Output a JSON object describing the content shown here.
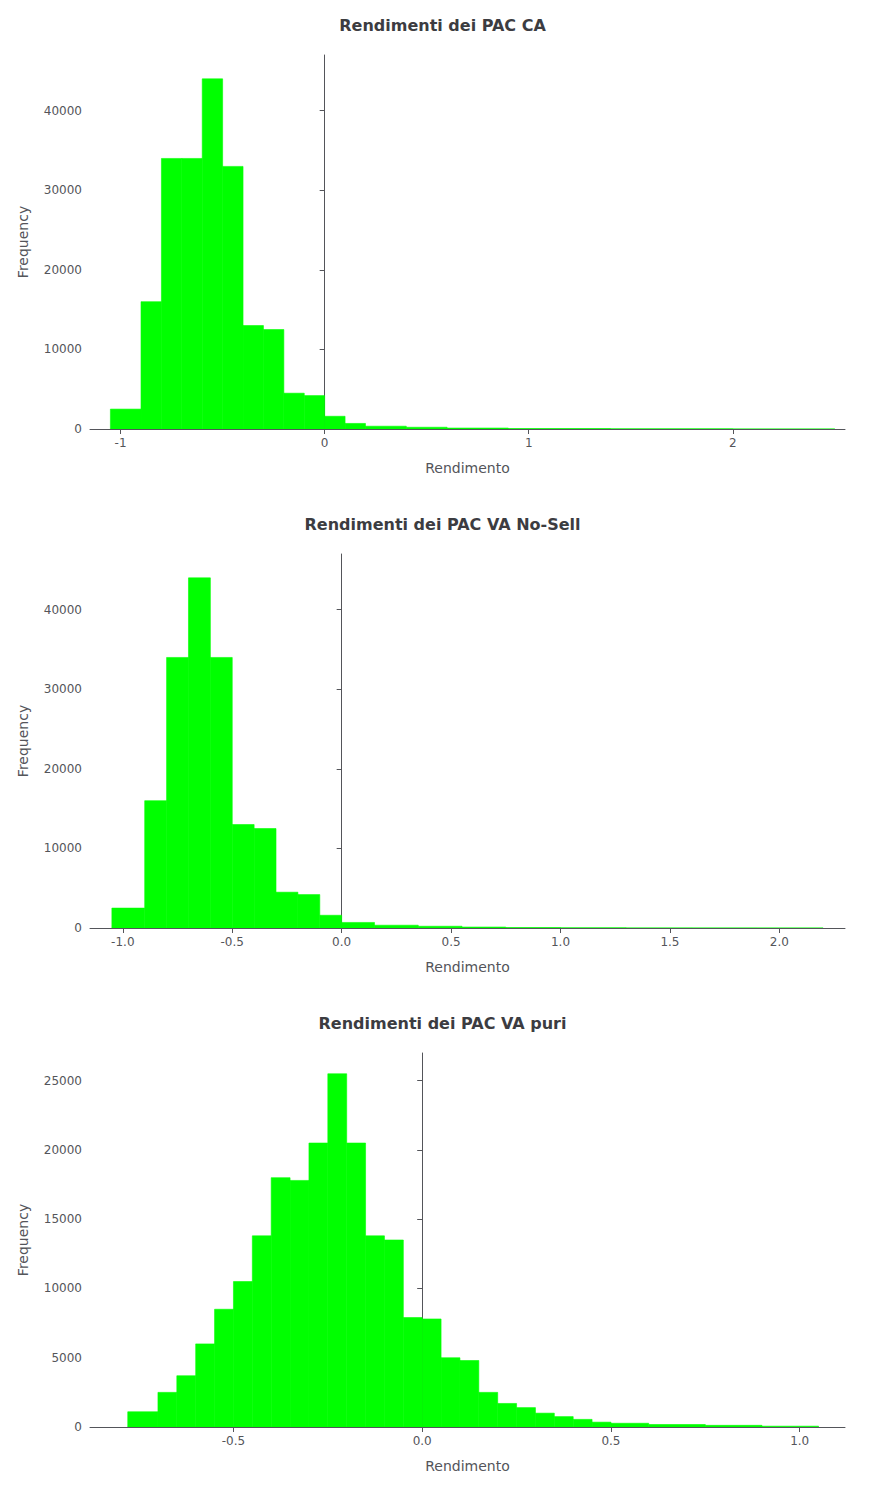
{
  "chart_data": [
    {
      "type": "histogram",
      "title": "Rendimenti dei PAC CA",
      "xlabel": "Rendimento",
      "ylabel": "Frequency",
      "color": "#00FF00",
      "bins": [
        -1.05,
        -0.9,
        -0.8,
        -0.7,
        -0.6,
        -0.5,
        -0.4,
        -0.3,
        -0.2,
        -0.1,
        0.0,
        0.1,
        0.2,
        0.4,
        0.6,
        0.9,
        1.4,
        2.0,
        2.5
      ],
      "values": [
        2500,
        16000,
        34000,
        34000,
        44000,
        33000,
        13000,
        12500,
        4500,
        4200,
        1600,
        700,
        350,
        220,
        120,
        60,
        25,
        8
      ],
      "xlim": [
        -1.15,
        2.55
      ],
      "ylim": [
        0,
        47000
      ],
      "xticks": [
        -1,
        0,
        1,
        2
      ],
      "yticks": [
        0,
        10000,
        20000,
        30000,
        40000
      ],
      "grid": false
    },
    {
      "type": "histogram",
      "title": "Rendimenti dei PAC VA No-Sell",
      "xlabel": "Rendimento",
      "ylabel": "Frequency",
      "color": "#00FF00",
      "bins": [
        -1.05,
        -0.9,
        -0.8,
        -0.7,
        -0.6,
        -0.5,
        -0.4,
        -0.3,
        -0.2,
        -0.1,
        0.0,
        0.15,
        0.35,
        0.55,
        0.75,
        1.0,
        1.3,
        1.6,
        1.9,
        2.2
      ],
      "values": [
        2500,
        16000,
        34000,
        44000,
        34000,
        13000,
        12500,
        4500,
        4200,
        1600,
        700,
        350,
        220,
        120,
        60,
        25,
        12,
        6,
        3
      ],
      "xlim": [
        -1.15,
        2.3
      ],
      "ylim": [
        0,
        47000
      ],
      "xticks": [
        {
          "value": -1.0,
          "label": "-1.0"
        },
        -0.5,
        {
          "value": 0.0,
          "label": "0.0"
        },
        0.5,
        {
          "value": 1.0,
          "label": "1.0"
        },
        1.5,
        {
          "value": 2.0,
          "label": "2.0"
        }
      ],
      "yticks": [
        0,
        10000,
        20000,
        30000,
        40000
      ],
      "grid": false
    },
    {
      "type": "histogram",
      "title": "Rendimenti dei PAC VA puri",
      "xlabel": "Rendimento",
      "ylabel": "Frequency",
      "color": "#00FF00",
      "bins": [
        -0.78,
        -0.7,
        -0.65,
        -0.6,
        -0.55,
        -0.5,
        -0.45,
        -0.4,
        -0.35,
        -0.3,
        -0.25,
        -0.2,
        -0.15,
        -0.1,
        -0.05,
        0.0,
        0.05,
        0.1,
        0.15,
        0.2,
        0.25,
        0.3,
        0.35,
        0.4,
        0.45,
        0.5,
        0.6,
        0.75,
        0.9,
        1.05
      ],
      "values": [
        1100,
        2500,
        3700,
        6000,
        8500,
        10500,
        13800,
        18000,
        17800,
        20500,
        25500,
        20500,
        13800,
        13500,
        7900,
        7800,
        5000,
        4800,
        2500,
        1700,
        1400,
        1000,
        750,
        550,
        350,
        270,
        180,
        120,
        60
      ],
      "xlim": [
        -0.88,
        1.12
      ],
      "ylim": [
        0,
        27000
      ],
      "xticks": [
        -0.5,
        {
          "value": 0.0,
          "label": "0.0"
        },
        0.5,
        {
          "value": 1.0,
          "label": "1.0"
        }
      ],
      "yticks": [
        0,
        5000,
        10000,
        15000,
        20000,
        25000
      ],
      "grid": false
    }
  ]
}
